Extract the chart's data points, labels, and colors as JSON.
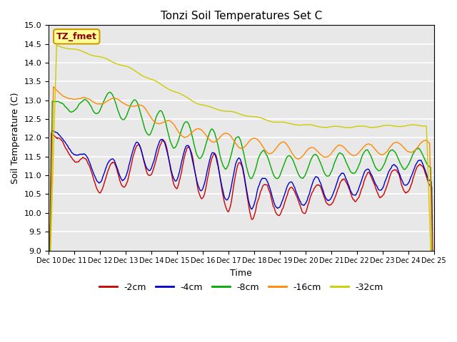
{
  "title": "Tonzi Soil Temperatures Set C",
  "xlabel": "Time",
  "ylabel": "Soil Temperature (C)",
  "ylim": [
    9.0,
    15.0
  ],
  "yticks": [
    9.0,
    9.5,
    10.0,
    10.5,
    11.0,
    11.5,
    12.0,
    12.5,
    13.0,
    13.5,
    14.0,
    14.5,
    15.0
  ],
  "xtick_labels": [
    "Dec 10",
    "Dec 11",
    "Dec 12",
    "Dec 13",
    "Dec 14",
    "Dec 15",
    "Dec 16",
    "Dec 17",
    "Dec 18",
    "Dec 19",
    "Dec 20",
    "Dec 21",
    "Dec 22",
    "Dec 23",
    "Dec 24",
    "Dec 25"
  ],
  "bg_color": "#e8e8e8",
  "legend_box_color": "#ffff99",
  "legend_box_edge": "#cc9900",
  "label_box_text": "TZ_fmet",
  "label_box_text_color": "#8b0000",
  "series": [
    {
      "label": "-2cm",
      "color": "#cc0000"
    },
    {
      "label": "-4cm",
      "color": "#0000cc"
    },
    {
      "label": "-8cm",
      "color": "#00aa00"
    },
    {
      "label": "-16cm",
      "color": "#ff8800"
    },
    {
      "label": "-32cm",
      "color": "#cccc00"
    }
  ]
}
